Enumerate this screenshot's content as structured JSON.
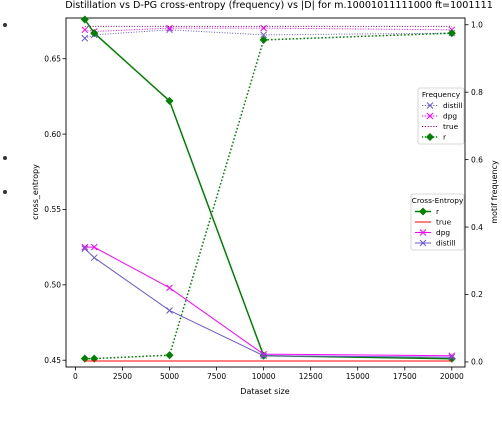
{
  "chart_data": {
    "type": "line",
    "title": "Distillation vs D-PG cross-entropy (frequency) vs |D| for m.10001011111000 ft=1001111",
    "xlabel": "Dataset size",
    "ylabel_left": "cross_entropy",
    "ylabel_right": "motif frequency",
    "x": [
      500,
      1000,
      5000,
      10000,
      20000
    ],
    "xlim": [
      -500,
      20700
    ],
    "ylim_left": [
      0.4455,
      0.677
    ],
    "ylim_right": [
      -0.015,
      1.02
    ],
    "x_ticks": [
      0,
      2500,
      5000,
      7500,
      10000,
      12500,
      15000,
      17500,
      20000
    ],
    "x_tick_labels": [
      "0",
      "2500",
      "5000",
      "7500",
      "10000",
      "12500",
      "15000",
      "17500",
      "20000"
    ],
    "y_left_ticks": [
      0.45,
      0.5,
      0.55,
      0.6,
      0.65
    ],
    "y_left_tick_labels": [
      "0.45",
      "0.50",
      "0.55",
      "0.60",
      "0.65"
    ],
    "y_right_ticks": [
      0.0,
      0.2,
      0.4,
      0.6,
      0.8,
      1.0
    ],
    "y_right_tick_labels": [
      "0.0",
      "0.2",
      "0.4",
      "0.6",
      "0.8",
      "1.0"
    ],
    "cross_entropy_series": [
      {
        "name": "r",
        "color": "#008000",
        "style": "solid",
        "marker": "diamond",
        "values": [
          0.676,
          0.667,
          0.622,
          0.453,
          0.451
        ]
      },
      {
        "name": "true",
        "color": "#ff0000",
        "style": "solid",
        "marker": "none",
        "values": [
          0.4495,
          0.4495,
          0.4495,
          0.4495,
          0.4495
        ]
      },
      {
        "name": "dpg",
        "color": "#ff00ff",
        "style": "solid",
        "marker": "x",
        "values": [
          0.525,
          0.525,
          0.498,
          0.454,
          0.453
        ]
      },
      {
        "name": "distill",
        "color": "#6a5acd",
        "style": "solid",
        "marker": "x",
        "values": [
          0.524,
          0.518,
          0.483,
          0.453,
          0.452
        ]
      }
    ],
    "frequency_series": [
      {
        "name": "distill",
        "color": "#6a5acd",
        "style": "dotted",
        "marker": "x",
        "values": [
          0.96,
          0.97,
          0.985,
          0.97,
          0.975
        ]
      },
      {
        "name": "dpg",
        "color": "#ff00ff",
        "style": "dotted",
        "marker": "x",
        "values": [
          0.985,
          0.98,
          0.99,
          0.99,
          0.985
        ]
      },
      {
        "name": "true",
        "color": "#800080",
        "style": "dotted",
        "marker": "none",
        "values": [
          0.995,
          0.995,
          0.995,
          0.995,
          0.995
        ]
      },
      {
        "name": "r",
        "color": "#008000",
        "style": "dotted",
        "marker": "diamond",
        "values": [
          0.01,
          0.01,
          0.02,
          0.955,
          0.975
        ]
      }
    ],
    "legend_frequency": {
      "title": "Frequency",
      "placement": "center-right"
    },
    "legend_cross_entropy": {
      "title": "Cross-Entropy",
      "placement": "lower-right"
    }
  }
}
